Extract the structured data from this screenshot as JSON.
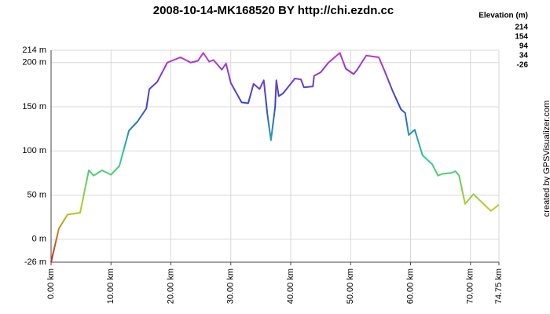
{
  "chart_data": {
    "type": "line",
    "title": "2008-10-14-MK168520  BY http://chi.ezdn.cc",
    "credit": "created by GPSVisualizer.com",
    "x": [
      0,
      1.3,
      2.75,
      4.85,
      6.3,
      7.1,
      8.5,
      10,
      11.4,
      13,
      14.4,
      15.9,
      16.4,
      17.7,
      19.4,
      21.6,
      23.3,
      24.5,
      25.4,
      26.4,
      27.1,
      28.5,
      29.2,
      30,
      31.8,
      32.9,
      33.8,
      34.8,
      35.5,
      36.1,
      36.7,
      37.4,
      37.6,
      38,
      38.7,
      40.7,
      41.7,
      42.2,
      43.7,
      43.9,
      45,
      46.3,
      48.2,
      49.2,
      50.5,
      51.1,
      52.6,
      54.7,
      55.7,
      57,
      58.4,
      59.1,
      59.7,
      60.7,
      62,
      63.6,
      64.6,
      65.3,
      66.8,
      67.5,
      68.1,
      69.1,
      70.5,
      73.4,
      74.75
    ],
    "series": [
      {
        "values": [
          -26,
          12,
          28,
          30,
          78,
          72,
          78,
          73,
          83,
          123,
          133,
          148,
          170,
          178,
          200,
          206,
          200,
          202,
          211,
          201,
          203,
          192,
          199,
          177,
          155,
          154,
          176,
          170,
          180,
          142,
          112,
          150,
          180,
          162,
          165,
          182,
          181,
          172,
          173,
          185,
          189,
          200,
          211,
          193,
          187,
          192,
          208,
          206,
          190,
          168,
          147,
          143,
          118,
          124,
          95,
          85,
          72,
          74,
          75,
          77,
          72,
          40,
          51,
          32,
          39
        ]
      }
    ],
    "xlim": [
      0,
      74.75
    ],
    "ylim": [
      -26,
      214
    ],
    "xticks": [
      {
        "value": 0,
        "label": "0.00 km"
      },
      {
        "value": 10,
        "label": "10.00 km"
      },
      {
        "value": 20,
        "label": "20.00 km"
      },
      {
        "value": 30,
        "label": "30.00 km"
      },
      {
        "value": 40,
        "label": "40.00 km"
      },
      {
        "value": 50,
        "label": "50.00 km"
      },
      {
        "value": 60,
        "label": "60.00 km"
      },
      {
        "value": 70,
        "label": "70.00 km"
      },
      {
        "value": 74.75,
        "label": "74.75 km"
      }
    ],
    "yticks": [
      {
        "value": -26,
        "label": "-26 m"
      },
      {
        "value": 0,
        "label": "0 m"
      },
      {
        "value": 50,
        "label": "50 m"
      },
      {
        "value": 100,
        "label": "100 m"
      },
      {
        "value": 150,
        "label": "150 m"
      },
      {
        "value": 200,
        "label": "200 m"
      },
      {
        "value": 214,
        "label": "214 m"
      }
    ],
    "grid": true,
    "legend": {
      "title": "Elevation (m)",
      "stops": [
        {
          "value": 214,
          "color": "#cc33cc"
        },
        {
          "value": 154,
          "color": "#3344cc"
        },
        {
          "value": 94,
          "color": "#22cc99"
        },
        {
          "value": 34,
          "color": "#bbcc22"
        },
        {
          "value": -26,
          "color": "#cc2222"
        }
      ]
    }
  }
}
